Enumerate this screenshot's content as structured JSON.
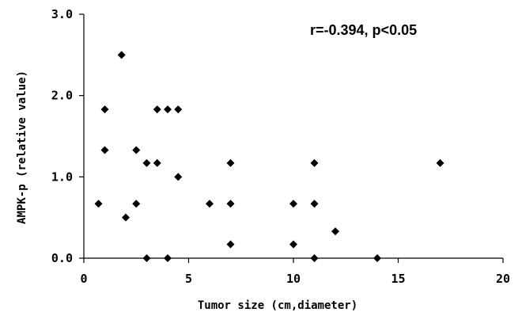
{
  "chart_data": {
    "type": "scatter",
    "xlabel": "Tumor size (cm,diameter)",
    "ylabel": "AMPK-p (relative value)",
    "annotation": "r=-0.394, p<0.05",
    "xlim": [
      0,
      20
    ],
    "ylim": [
      0,
      3
    ],
    "x_ticks": [
      0,
      5,
      10,
      15,
      20
    ],
    "x_tick_labels": [
      "0",
      "5",
      "10",
      "15",
      "20"
    ],
    "y_ticks": [
      0,
      1,
      2,
      3
    ],
    "y_tick_labels": [
      "0.0",
      "1.0",
      "2.0",
      "3.0"
    ],
    "grid": false,
    "marker": "diamond",
    "marker_color": "#000000",
    "points": [
      {
        "x": 0.7,
        "y": 0.67
      },
      {
        "x": 1.0,
        "y": 1.83
      },
      {
        "x": 1.0,
        "y": 1.33
      },
      {
        "x": 1.8,
        "y": 2.5
      },
      {
        "x": 2.0,
        "y": 0.5
      },
      {
        "x": 2.5,
        "y": 1.33
      },
      {
        "x": 2.5,
        "y": 0.67
      },
      {
        "x": 3.0,
        "y": 1.17
      },
      {
        "x": 3.0,
        "y": 0.0
      },
      {
        "x": 3.5,
        "y": 1.83
      },
      {
        "x": 3.5,
        "y": 1.17
      },
      {
        "x": 4.0,
        "y": 1.83
      },
      {
        "x": 4.0,
        "y": 0.0
      },
      {
        "x": 4.5,
        "y": 1.83
      },
      {
        "x": 4.5,
        "y": 1.0
      },
      {
        "x": 6.0,
        "y": 0.67
      },
      {
        "x": 7.0,
        "y": 1.17
      },
      {
        "x": 7.0,
        "y": 0.67
      },
      {
        "x": 7.0,
        "y": 0.17
      },
      {
        "x": 10.0,
        "y": 0.67
      },
      {
        "x": 10.0,
        "y": 0.17
      },
      {
        "x": 11.0,
        "y": 1.17
      },
      {
        "x": 11.0,
        "y": 0.67
      },
      {
        "x": 11.0,
        "y": 0.0
      },
      {
        "x": 12.0,
        "y": 0.33
      },
      {
        "x": 14.0,
        "y": 0.0
      },
      {
        "x": 17.0,
        "y": 1.17
      }
    ]
  }
}
